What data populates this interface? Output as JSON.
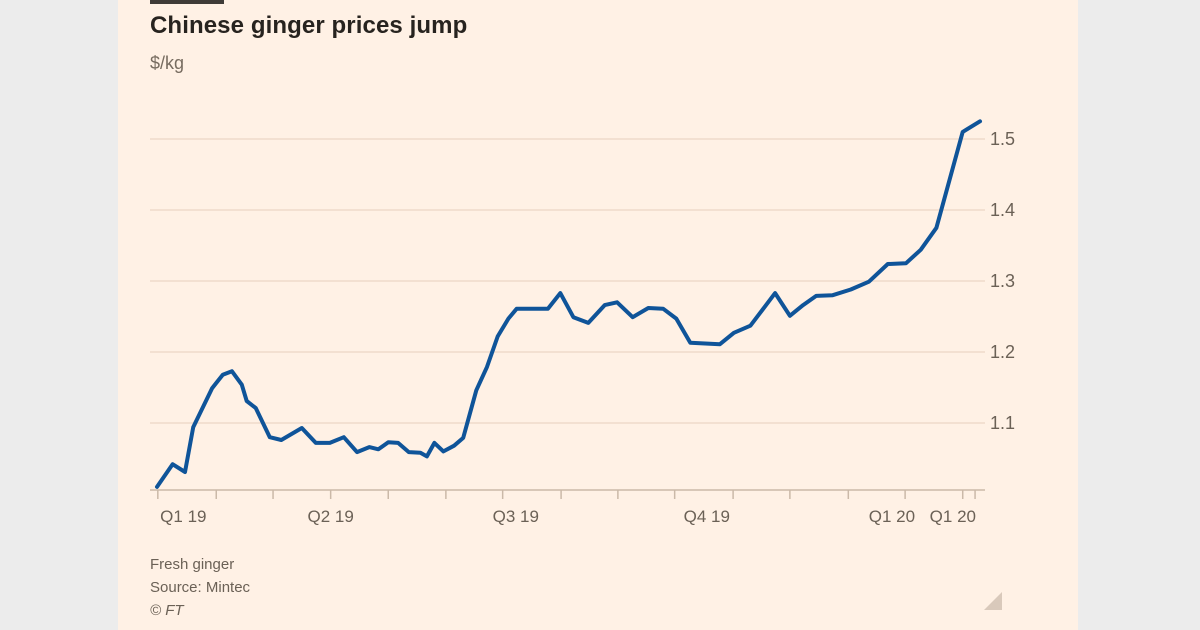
{
  "header": {
    "title": "Chinese ginger prices jump",
    "subtitle": "$/kg"
  },
  "footer": {
    "series_note": "Fresh ginger",
    "source": "Source: Mintec",
    "copyright": "© FT"
  },
  "colors": {
    "page_bg": "#ececec",
    "card_bg": "#fff1e5",
    "line": "#0f5499",
    "grid": "#f3e0d1",
    "axis_line": "#cbb9a8",
    "axis_text": "#6b6156",
    "title_text": "#27231f",
    "top_rule": "#3f3b37",
    "resize_handle": "#d9c9bb"
  },
  "chart_data": {
    "type": "line",
    "title": "Chinese ginger prices jump",
    "ylabel": "$/kg",
    "grid": "horizontal-only",
    "legend_position": "none",
    "x_axis": {
      "range_note": "Q1 2019 through Q1 2020, weekly data",
      "labels": [
        "Q1 19",
        "Q2 19",
        "Q3 19",
        "Q4 19",
        "Q1 20",
        "Q1 20"
      ],
      "label_positions": [
        0.032,
        0.211,
        0.436,
        0.668,
        0.893,
        0.967
      ],
      "minor_tick_positions": [
        0.001,
        0.072,
        0.141,
        0.211,
        0.281,
        0.351,
        0.42,
        0.491,
        0.56,
        0.629,
        0.7,
        0.769,
        0.84,
        0.909,
        0.979,
        0.994
      ]
    },
    "y_axis": {
      "min": 1.0,
      "max": 1.55,
      "ticks": [
        {
          "label": "1.1",
          "value": 1.1
        },
        {
          "label": "1.2",
          "value": 1.2
        },
        {
          "label": "1.3",
          "value": 1.3
        },
        {
          "label": "1.4",
          "value": 1.4
        },
        {
          "label": "1.5",
          "value": 1.5
        }
      ]
    },
    "series": [
      {
        "name": "Fresh ginger",
        "unit": "$/kg",
        "points": [
          [
            0.0,
            1.01
          ],
          [
            0.019,
            1.042
          ],
          [
            0.034,
            1.031
          ],
          [
            0.044,
            1.094
          ],
          [
            0.067,
            1.149
          ],
          [
            0.08,
            1.168
          ],
          [
            0.091,
            1.173
          ],
          [
            0.103,
            1.154
          ],
          [
            0.109,
            1.131
          ],
          [
            0.12,
            1.121
          ],
          [
            0.137,
            1.08
          ],
          [
            0.151,
            1.076
          ],
          [
            0.176,
            1.093
          ],
          [
            0.193,
            1.072
          ],
          [
            0.21,
            1.072
          ],
          [
            0.227,
            1.08
          ],
          [
            0.243,
            1.059
          ],
          [
            0.258,
            1.066
          ],
          [
            0.269,
            1.063
          ],
          [
            0.281,
            1.073
          ],
          [
            0.293,
            1.072
          ],
          [
            0.306,
            1.059
          ],
          [
            0.32,
            1.058
          ],
          [
            0.328,
            1.053
          ],
          [
            0.337,
            1.072
          ],
          [
            0.348,
            1.06
          ],
          [
            0.361,
            1.068
          ],
          [
            0.372,
            1.079
          ],
          [
            0.388,
            1.146
          ],
          [
            0.401,
            1.179
          ],
          [
            0.414,
            1.222
          ],
          [
            0.427,
            1.247
          ],
          [
            0.437,
            1.261
          ],
          [
            0.475,
            1.261
          ],
          [
            0.49,
            1.283
          ],
          [
            0.506,
            1.249
          ],
          [
            0.524,
            1.241
          ],
          [
            0.544,
            1.266
          ],
          [
            0.559,
            1.27
          ],
          [
            0.578,
            1.249
          ],
          [
            0.597,
            1.262
          ],
          [
            0.615,
            1.261
          ],
          [
            0.631,
            1.247
          ],
          [
            0.648,
            1.213
          ],
          [
            0.684,
            1.211
          ],
          [
            0.701,
            1.227
          ],
          [
            0.721,
            1.237
          ],
          [
            0.751,
            1.283
          ],
          [
            0.769,
            1.251
          ],
          [
            0.785,
            1.266
          ],
          [
            0.801,
            1.279
          ],
          [
            0.821,
            1.28
          ],
          [
            0.843,
            1.288
          ],
          [
            0.865,
            1.299
          ],
          [
            0.888,
            1.324
          ],
          [
            0.91,
            1.325
          ],
          [
            0.928,
            1.344
          ],
          [
            0.947,
            1.375
          ],
          [
            0.979,
            1.51
          ],
          [
            1.0,
            1.525
          ]
        ]
      }
    ],
    "annotations": [
      "Fresh ginger",
      "Source: Mintec",
      "© FT"
    ]
  }
}
